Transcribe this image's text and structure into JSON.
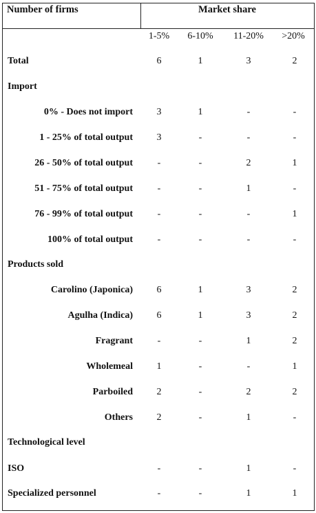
{
  "header": {
    "left_title": "Number of firms",
    "right_title": "Market share"
  },
  "columns": [
    "1-5%",
    "6-10%",
    "11-20%",
    ">20%"
  ],
  "rows": [
    {
      "label": "Total",
      "align": "left",
      "values": [
        "6",
        "1",
        "3",
        "2"
      ]
    },
    {
      "label": "Import",
      "align": "left",
      "values": [
        "",
        "",
        "",
        ""
      ]
    },
    {
      "label": "0% - Does not import",
      "align": "right",
      "values": [
        "3",
        "1",
        "-",
        "-"
      ]
    },
    {
      "label": "1 - 25% of total output",
      "align": "right",
      "values": [
        "3",
        "-",
        "-",
        "-"
      ]
    },
    {
      "label": "26 - 50% of total output",
      "align": "right",
      "values": [
        "-",
        "-",
        "2",
        "1"
      ]
    },
    {
      "label": "51 - 75% of total output",
      "align": "right",
      "values": [
        "-",
        "-",
        "1",
        "-"
      ]
    },
    {
      "label": "76 - 99% of total output",
      "align": "right",
      "values": [
        "-",
        "-",
        "-",
        "1"
      ]
    },
    {
      "label": "100% of total output",
      "align": "right",
      "values": [
        "-",
        "-",
        "-",
        "-"
      ]
    },
    {
      "label": "Products sold",
      "align": "left",
      "values": [
        "",
        "",
        "",
        ""
      ]
    },
    {
      "label": "Carolino (Japonica)",
      "align": "right",
      "values": [
        "6",
        "1",
        "3",
        "2"
      ]
    },
    {
      "label": "Agulha (Indica)",
      "align": "right",
      "values": [
        "6",
        "1",
        "3",
        "2"
      ]
    },
    {
      "label": "Fragrant",
      "align": "right",
      "values": [
        "-",
        "-",
        "1",
        "2"
      ]
    },
    {
      "label": "Wholemeal",
      "align": "right",
      "values": [
        "1",
        "-",
        "-",
        "1"
      ]
    },
    {
      "label": "Parboiled",
      "align": "right",
      "values": [
        "2",
        "-",
        "2",
        "2"
      ]
    },
    {
      "label": "Others",
      "align": "right",
      "values": [
        "2",
        "-",
        "1",
        "-"
      ]
    },
    {
      "label": "Technological level",
      "align": "left",
      "values": [
        "",
        "",
        "",
        ""
      ]
    },
    {
      "label": "ISO",
      "align": "left",
      "values": [
        "-",
        "-",
        "1",
        "-"
      ]
    },
    {
      "label": "Specialized personnel",
      "align": "left",
      "values": [
        "-",
        "-",
        "1",
        "1"
      ]
    }
  ]
}
